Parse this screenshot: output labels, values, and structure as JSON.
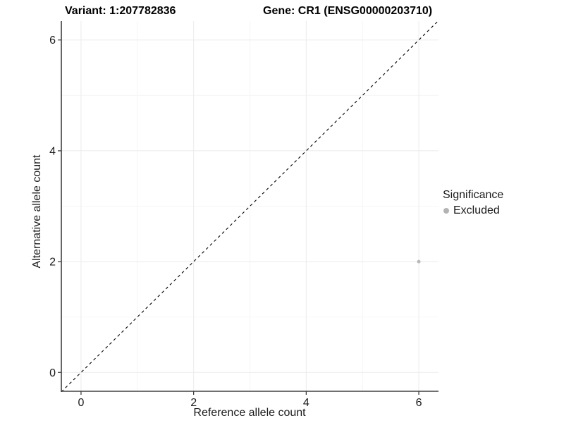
{
  "chart_data": {
    "type": "scatter",
    "title_left": "Variant: 1:207782836",
    "title_right": "Gene: CR1 (ENSG00000203710)",
    "xlabel": "Reference allele count",
    "ylabel": "Alternative allele count",
    "xlim": [
      -0.35,
      6.35
    ],
    "ylim": [
      -0.34,
      6.34
    ],
    "x_ticks": [
      0,
      2,
      4,
      6
    ],
    "y_ticks": [
      0,
      2,
      4,
      6
    ],
    "x_minor_ticks": [
      1,
      3,
      5
    ],
    "y_minor_ticks": [
      1,
      3,
      5
    ],
    "grid": "major+minor",
    "legend": {
      "position": "right",
      "title": "Significance",
      "items": [
        {
          "label": "Excluded",
          "color": "#b3b3b3"
        }
      ]
    },
    "series": [
      {
        "name": "Excluded",
        "color": "#b9b9b9",
        "points": [
          {
            "x": 6,
            "y": 2
          }
        ]
      }
    ],
    "reference_line": {
      "type": "abline",
      "slope": 1,
      "intercept": 0,
      "linetype": "dashed",
      "color": "#000000"
    },
    "colors": {
      "background": "#ffffff",
      "grid_major": "#ebebeb",
      "grid_minor": "#f6f6f6",
      "axis_line": "#404040",
      "tick_mark": "#333333",
      "tick_label": "#1a1a1a"
    }
  }
}
